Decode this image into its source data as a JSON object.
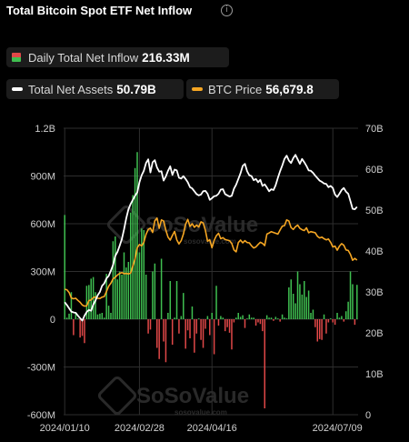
{
  "header": {
    "title": "Total Bitcoin Spot ETF Net Inflow",
    "info_icon": "i"
  },
  "legend": {
    "daily": {
      "label": "Daily Total Net Inflow",
      "value": "216.33M"
    },
    "assets": {
      "label": "Total Net Assets",
      "value": "50.79B"
    },
    "btc": {
      "label": "BTC Price",
      "value": "56,679.8"
    }
  },
  "watermark": {
    "text": "SoSoValue",
    "sub": "sosovalue.com"
  },
  "colors": {
    "positive": "#3fbf50",
    "negative": "#e04848",
    "assets_line": "#ffffff",
    "btc_line": "#f5a623",
    "grid": "#2e2e2e"
  },
  "chart_data": {
    "type": "bar+line",
    "title": "Total Bitcoin Spot ETF Net Inflow",
    "left_axis": {
      "ticks": [
        "1.2B",
        "900M",
        "600M",
        "300M",
        "0",
        "-300M",
        "-600M"
      ],
      "range": [
        -600,
        1200
      ],
      "unit": "M"
    },
    "right_axis": {
      "ticks": [
        "70B",
        "60B",
        "50B",
        "40B",
        "30B",
        "20B",
        "10B",
        "0"
      ],
      "range": [
        0,
        70
      ],
      "unit": "B"
    },
    "x_tick_labels": [
      "2024/01/10",
      "2024/02/28",
      "2024/04/16",
      "2024/07/09"
    ],
    "x_tick_index": [
      0,
      34,
      67,
      122
    ],
    "daily_net_inflow_M": [
      655,
      10,
      35,
      170,
      -100,
      45,
      5,
      -115,
      -105,
      -150,
      210,
      215,
      255,
      265,
      170,
      30,
      35,
      40,
      10,
      285,
      85,
      40,
      490,
      520,
      250,
      300,
      280,
      420,
      325,
      360,
      670,
      780,
      950,
      1050,
      420,
      570,
      560,
      280,
      -90,
      -65,
      300,
      350,
      -180,
      -250,
      380,
      -140,
      -270,
      40,
      240,
      -160,
      10,
      240,
      -90,
      20,
      165,
      -185,
      -70,
      -120,
      80,
      -210,
      -90,
      5,
      -130,
      -180,
      -60,
      20,
      -100,
      40,
      -220,
      210,
      -40,
      20,
      10,
      -75,
      -50,
      -85,
      -190,
      -20,
      10,
      40,
      15,
      25,
      -55,
      5,
      30,
      10,
      10,
      -40,
      -20,
      -30,
      -75,
      -560,
      25,
      10,
      10,
      -10,
      15,
      5,
      -15,
      30,
      10,
      5,
      200,
      250,
      160,
      100,
      300,
      220,
      155,
      240,
      140,
      180,
      40,
      60,
      -50,
      -140,
      -125,
      -130,
      30,
      -90,
      -20,
      5,
      -20,
      -35,
      40,
      10,
      20,
      -15,
      50,
      110,
      300,
      220,
      -35,
      216
    ],
    "series": [
      {
        "name": "Total Net Assets",
        "unit": "B",
        "values": [
          27.5,
          26.8,
          26.0,
          25.2,
          25.0,
          24.9,
          24.2,
          23.6,
          23.0,
          24.2,
          25.1,
          25.6,
          25.4,
          26.9,
          27.9,
          29.2,
          30.0,
          31.5,
          32.1,
          33.3,
          33.9,
          35.2,
          36.6,
          38.8,
          39.8,
          41.3,
          42.9,
          45.3,
          48.0,
          50.2,
          51.5,
          52.5,
          53.5,
          54.3,
          56.8,
          58.5,
          59.6,
          61.5,
          62.4,
          59.2,
          61.7,
          62.2,
          60.4,
          59.4,
          59.5,
          57.2,
          58.2,
          59.6,
          60.7,
          58.6,
          59.9,
          59.7,
          57.9,
          57.7,
          58.3,
          57.6,
          56.8,
          55.6,
          55.3,
          54.6,
          53.9,
          53.6,
          53.8,
          54.6,
          54.7,
          54.0,
          52.5,
          52.9,
          53.4,
          53.5,
          54.0,
          55.0,
          55.1,
          53.9,
          53.6,
          53.3,
          53.5,
          55.2,
          56.2,
          57.6,
          59.0,
          60.8,
          61.3,
          59.5,
          58.5,
          58.3,
          57.3,
          57.6,
          56.8,
          57.4,
          55.9,
          56.3,
          55.5,
          54.6,
          55.1,
          54.9,
          56.1,
          57.9,
          59.5,
          60.9,
          62.5,
          63.3,
          62.1,
          61.5,
          62.7,
          63.5,
          62.4,
          61.3,
          62.5,
          61.7,
          60.8,
          59.7,
          59.6,
          59.1,
          58.4,
          57.8,
          57.2,
          56.9,
          56.5,
          56.4,
          55.6,
          55.9,
          55.4,
          53.8,
          53.2,
          54.0,
          54.9,
          55.4,
          54.5,
          54.0,
          52.2,
          50.3,
          50.2,
          50.79
        ]
      },
      {
        "name": "BTC Price",
        "unit": "USD",
        "values": [
          46000,
          45800,
          44800,
          42800,
          42500,
          42700,
          41900,
          41200,
          40200,
          39800,
          39900,
          41800,
          42100,
          42900,
          43200,
          42700,
          42600,
          43100,
          43300,
          45200,
          47100,
          48200,
          49800,
          50400,
          51200,
          51800,
          52100,
          51700,
          51800,
          51600,
          51900,
          54500,
          57100,
          61200,
          62400,
          61900,
          63200,
          66100,
          67900,
          68400,
          66800,
          71100,
          72100,
          68300,
          71400,
          71000,
          67700,
          65100,
          64000,
          65700,
          67200,
          64100,
          62600,
          63800,
          66200,
          69800,
          71600,
          69000,
          70000,
          68700,
          69500,
          68800,
          70700,
          70300,
          67600,
          63600,
          64100,
          61200,
          63900,
          65600,
          66500,
          64500,
          64900,
          64200,
          64000,
          63800,
          62800,
          60400,
          59700,
          63100,
          64000,
          63000,
          63800,
          63100,
          63000,
          61900,
          61100,
          61500,
          62400,
          63200,
          62800,
          62000,
          66200,
          66600,
          67100,
          66800,
          66500,
          66200,
          67700,
          69100,
          69300,
          71400,
          71000,
          68600,
          67900,
          68900,
          69500,
          68300,
          67800,
          67500,
          68500,
          66700,
          67100,
          66900,
          66700,
          65400,
          64800,
          65100,
          64500,
          64100,
          64400,
          63200,
          61500,
          61800,
          60300,
          61800,
          62700,
          62100,
          60400,
          60200,
          58800,
          56600,
          57300,
          56680
        ]
      }
    ]
  }
}
